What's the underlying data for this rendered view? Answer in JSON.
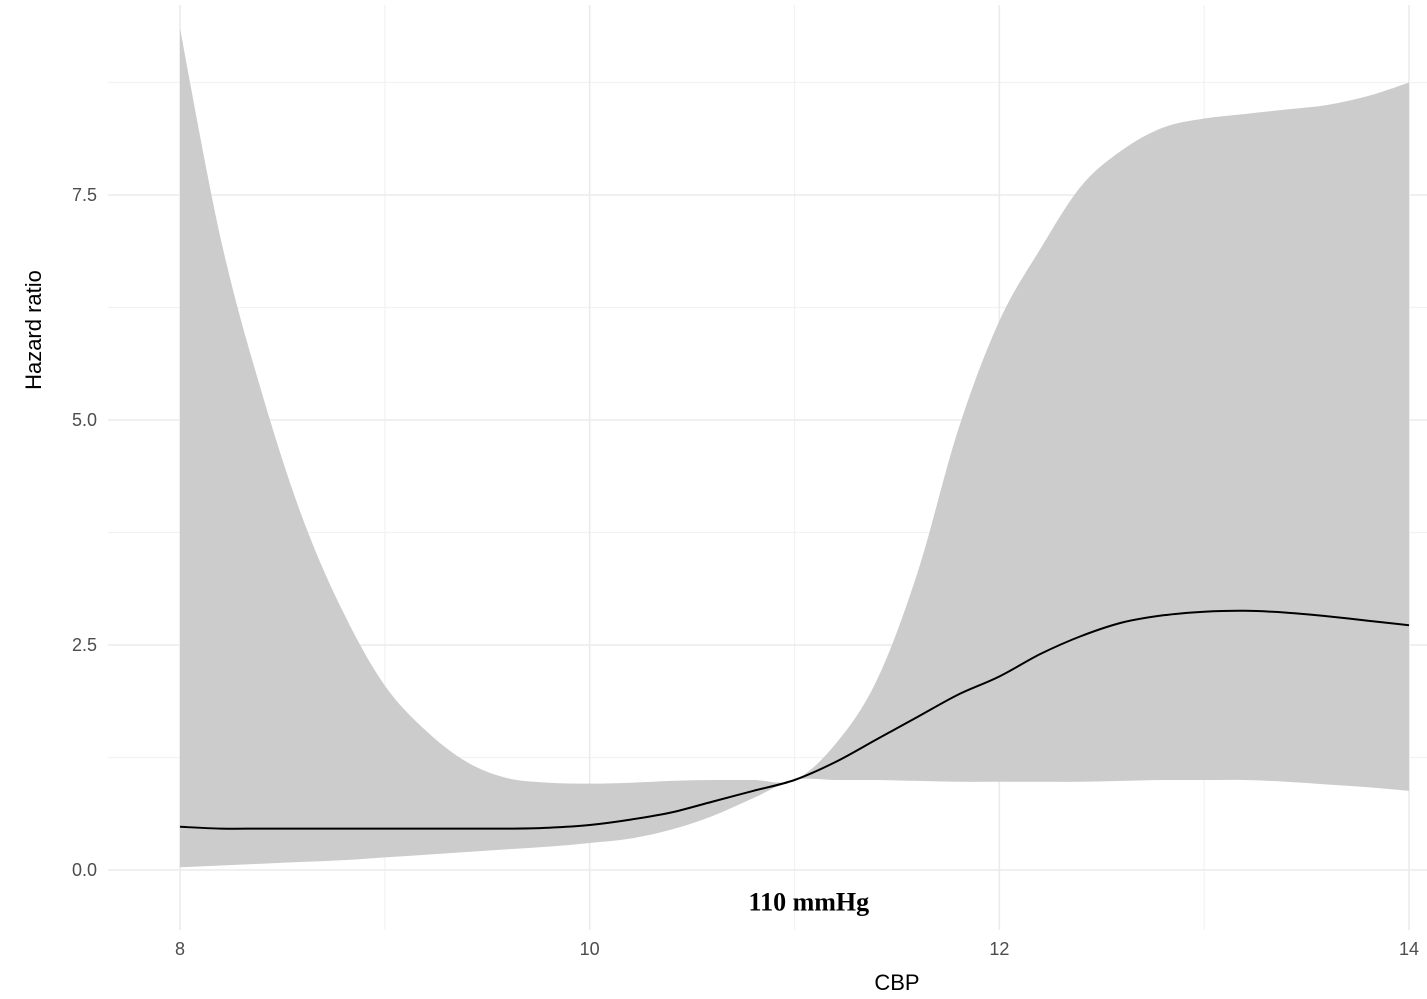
{
  "chart_data": {
    "type": "area",
    "title": "",
    "xlabel": "CBP",
    "ylabel": "Hazard ratio",
    "xlim": [
      8,
      14
    ],
    "ylim": [
      0,
      9.4
    ],
    "x_ticks": [
      8,
      10,
      12,
      14
    ],
    "x_tick_labels": [
      "8",
      "10",
      "12",
      "14"
    ],
    "y_ticks": [
      0.0,
      2.5,
      5.0,
      7.5
    ],
    "y_tick_labels": [
      "0.0",
      "2.5",
      "5.0",
      "7.5"
    ],
    "grid": true,
    "legend": "none",
    "colors": {
      "band": "#cccccc",
      "line": "#000000",
      "grid": "#ebebeb"
    },
    "annotation": {
      "text": "110 mmHg",
      "x": 11.07,
      "y": -0.35
    },
    "series": [
      {
        "type": "ribbon",
        "x": [
          8.0,
          8.2,
          8.4,
          8.6,
          8.8,
          9.0,
          9.2,
          9.4,
          9.6,
          9.8,
          10.0,
          10.2,
          10.4,
          10.6,
          10.8,
          11.0,
          11.2,
          11.4,
          11.6,
          11.8,
          12.0,
          12.2,
          12.4,
          12.6,
          12.8,
          13.0,
          13.2,
          13.4,
          13.6,
          13.8,
          14.0
        ],
        "upper": [
          9.35,
          7.0,
          5.3,
          3.9,
          2.85,
          2.05,
          1.55,
          1.2,
          1.02,
          0.97,
          0.96,
          0.97,
          0.99,
          1.0,
          1.0,
          1.0,
          1.4,
          2.1,
          3.3,
          4.9,
          6.1,
          6.9,
          7.6,
          8.0,
          8.25,
          8.35,
          8.4,
          8.45,
          8.5,
          8.6,
          8.75
        ],
        "lower": [
          0.03,
          0.05,
          0.07,
          0.09,
          0.11,
          0.14,
          0.17,
          0.2,
          0.23,
          0.26,
          0.3,
          0.35,
          0.45,
          0.6,
          0.8,
          1.0,
          1.0,
          1.0,
          0.99,
          0.98,
          0.98,
          0.98,
          0.98,
          0.99,
          1.0,
          1.0,
          1.0,
          0.98,
          0.95,
          0.92,
          0.88
        ]
      },
      {
        "type": "line",
        "x": [
          8.0,
          8.2,
          8.4,
          8.6,
          8.8,
          9.0,
          9.2,
          9.4,
          9.6,
          9.8,
          10.0,
          10.2,
          10.4,
          10.6,
          10.8,
          11.0,
          11.2,
          11.4,
          11.6,
          11.8,
          12.0,
          12.2,
          12.4,
          12.6,
          12.8,
          13.0,
          13.2,
          13.4,
          13.6,
          13.8,
          14.0
        ],
        "y": [
          0.48,
          0.46,
          0.46,
          0.46,
          0.46,
          0.46,
          0.46,
          0.46,
          0.46,
          0.47,
          0.5,
          0.56,
          0.64,
          0.76,
          0.88,
          1.0,
          1.2,
          1.45,
          1.7,
          1.95,
          2.15,
          2.4,
          2.6,
          2.75,
          2.83,
          2.87,
          2.88,
          2.86,
          2.82,
          2.77,
          2.72
        ]
      }
    ]
  }
}
